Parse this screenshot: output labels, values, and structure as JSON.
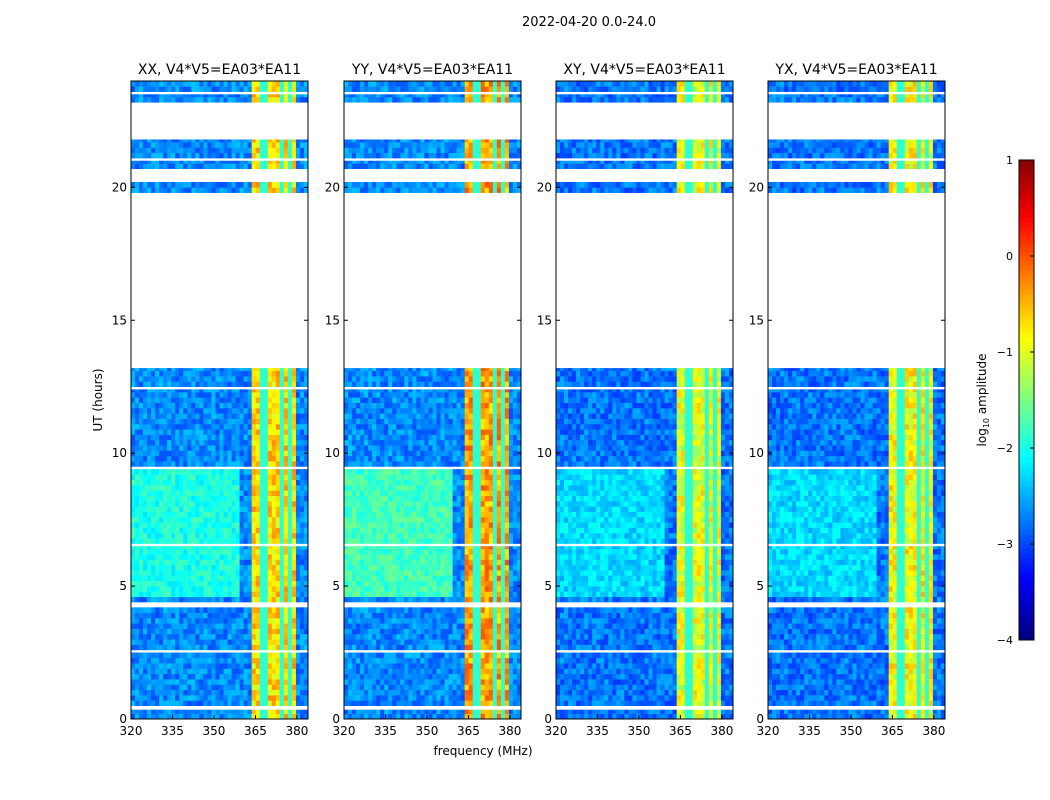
{
  "chart_data": {
    "type": "heatmap",
    "title": "2022-04-20 0.0-24.0",
    "xlabel": "frequency (MHz)",
    "ylabel": "UT (hours)",
    "xlim": [
      320,
      384
    ],
    "ylim": [
      0,
      24
    ],
    "xticks": [
      "320",
      "335",
      "350",
      "365",
      "380"
    ],
    "xtick_values": [
      320,
      335,
      350,
      365,
      380
    ],
    "yticks": [
      "0",
      "5",
      "10",
      "15",
      "20"
    ],
    "ytick_values": [
      0,
      5,
      10,
      15,
      20
    ],
    "colorbar": {
      "label": "log10 amplitude",
      "label_main": "log",
      "label_sub": "10",
      "label_rest": " amplitude",
      "range": [
        -4,
        1
      ],
      "ticks": [
        "−4",
        "−3",
        "−2",
        "−1",
        "0",
        "1"
      ],
      "tick_values": [
        -4,
        -3,
        -2,
        -1,
        0,
        1
      ]
    },
    "data_segments_hours": [
      [
        0,
        0.35
      ],
      [
        0.5,
        2.5
      ],
      [
        2.6,
        4.2
      ],
      [
        4.4,
        6.5
      ],
      [
        6.6,
        9.4
      ],
      [
        9.5,
        12.4
      ],
      [
        12.5,
        13.2
      ],
      [
        19.8,
        20.2
      ],
      [
        20.7,
        21.0
      ],
      [
        21.1,
        21.8
      ],
      [
        23.2,
        23.5
      ],
      [
        23.6,
        24
      ]
    ],
    "strong_band_mhz": [
      363,
      380
    ],
    "panels": [
      {
        "title": "XX, V4*V5=EA03*EA11",
        "low_level": -2.7,
        "high_level": -0.7,
        "morning_low": -2.0
      },
      {
        "title": "YY, V4*V5=EA03*EA11",
        "low_level": -2.7,
        "high_level": -0.4,
        "morning_low": -1.8
      },
      {
        "title": "XY, V4*V5=EA03*EA11",
        "low_level": -2.8,
        "high_level": -1.0,
        "morning_low": -2.3
      },
      {
        "title": "YX, V4*V5=EA03*EA11",
        "low_level": -2.8,
        "high_level": -0.9,
        "morning_low": -2.3
      }
    ]
  }
}
